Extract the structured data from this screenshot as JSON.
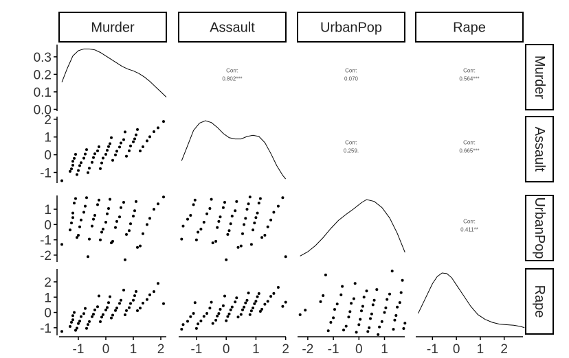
{
  "chart_data": {
    "type": "scatter",
    "title": "",
    "variables": [
      "Murder",
      "Assault",
      "UrbanPop",
      "Rape"
    ],
    "correlation": {
      "label": "Corr:",
      "values": [
        {
          "row": "Murder",
          "col": "Assault",
          "text": "0.802***"
        },
        {
          "row": "Murder",
          "col": "UrbanPop",
          "text": "0.070"
        },
        {
          "row": "Murder",
          "col": "Rape",
          "text": "0.564***"
        },
        {
          "row": "Assault",
          "col": "UrbanPop",
          "text": "0.259."
        },
        {
          "row": "Assault",
          "col": "Rape",
          "text": "0.665***"
        },
        {
          "row": "UrbanPop",
          "col": "Rape",
          "text": "0.411**"
        }
      ]
    },
    "x_ranges": [
      [
        -1.7,
        2.3
      ],
      [
        -1.6,
        2.1
      ],
      [
        -2.4,
        1.9
      ],
      [
        -1.7,
        2.9
      ]
    ],
    "y_ranges": [
      [
        -0.01,
        0.37
      ],
      [
        -1.6,
        2.15
      ],
      [
        -2.45,
        1.9
      ],
      [
        -1.5,
        2.85
      ]
    ],
    "x_ticks": [
      {
        "values": [
          -1,
          0,
          1,
          2
        ],
        "labels": [
          "-1",
          "0",
          "1",
          "2"
        ]
      },
      {
        "values": [
          -1,
          0,
          1,
          2
        ],
        "labels": [
          "-1",
          "0",
          "1",
          "2"
        ]
      },
      {
        "values": [
          -2,
          -1,
          0,
          1
        ],
        "labels": [
          "-2",
          "-1",
          "0",
          "1"
        ]
      },
      {
        "values": [
          -1,
          0,
          1,
          2
        ],
        "labels": [
          "-1",
          "0",
          "1",
          "2"
        ]
      }
    ],
    "y_ticks": [
      {
        "values": [
          0.0,
          0.1,
          0.2,
          0.3
        ],
        "labels": [
          "0.0",
          "0.1",
          "0.2",
          "0.3"
        ]
      },
      {
        "values": [
          -1,
          0,
          1,
          2
        ],
        "labels": [
          "-1",
          "0",
          "1",
          "2"
        ]
      },
      {
        "values": [
          -2,
          -1,
          0,
          1
        ],
        "labels": [
          "-2",
          "-1",
          "0",
          "1"
        ]
      },
      {
        "values": [
          -1,
          0,
          1,
          2
        ],
        "labels": [
          "-1",
          "0",
          "1",
          "2"
        ]
      }
    ],
    "densities": [
      {
        "variable": "Murder",
        "x": [
          -1.6,
          -1.4,
          -1.2,
          -1.0,
          -0.8,
          -0.6,
          -0.4,
          -0.2,
          0.0,
          0.2,
          0.4,
          0.6,
          0.8,
          1.0,
          1.2,
          1.4,
          1.6,
          1.8,
          2.0,
          2.2
        ],
        "y": [
          0.155,
          0.235,
          0.305,
          0.335,
          0.345,
          0.345,
          0.34,
          0.325,
          0.305,
          0.285,
          0.265,
          0.245,
          0.23,
          0.22,
          0.205,
          0.185,
          0.16,
          0.13,
          0.1,
          0.07
        ]
      },
      {
        "variable": "Assault",
        "x": [
          -1.5,
          -1.3,
          -1.1,
          -0.9,
          -0.7,
          -0.5,
          -0.3,
          -0.1,
          0.1,
          0.3,
          0.5,
          0.7,
          0.9,
          1.1,
          1.3,
          1.5,
          1.7,
          1.9,
          2.0
        ],
        "y": [
          0.3,
          0.55,
          0.8,
          0.92,
          0.96,
          0.93,
          0.85,
          0.75,
          0.68,
          0.66,
          0.66,
          0.7,
          0.72,
          0.7,
          0.6,
          0.42,
          0.22,
          0.06,
          0.0
        ]
      },
      {
        "variable": "UrbanPop",
        "x": [
          -2.3,
          -2.0,
          -1.7,
          -1.4,
          -1.1,
          -0.8,
          -0.5,
          -0.2,
          0.1,
          0.3,
          0.6,
          0.9,
          1.2,
          1.5,
          1.8
        ],
        "y": [
          0.03,
          0.1,
          0.2,
          0.33,
          0.48,
          0.61,
          0.71,
          0.8,
          0.9,
          0.95,
          0.92,
          0.82,
          0.65,
          0.4,
          0.09
        ]
      },
      {
        "variable": "Rape",
        "x": [
          -1.6,
          -1.3,
          -1.0,
          -0.8,
          -0.6,
          -0.4,
          -0.2,
          0.0,
          0.3,
          0.6,
          0.9,
          1.2,
          1.5,
          1.8,
          2.1,
          2.4,
          2.7,
          2.85
        ],
        "y": [
          0.3,
          0.55,
          0.8,
          0.92,
          0.98,
          0.97,
          0.9,
          0.78,
          0.6,
          0.42,
          0.28,
          0.2,
          0.15,
          0.12,
          0.11,
          0.1,
          0.08,
          0.06
        ]
      }
    ],
    "points": {
      "Murder": [
        -1.6,
        -1.3,
        -1.25,
        -1.2,
        -1.2,
        -1.15,
        -1.1,
        -1.05,
        -1.0,
        -0.95,
        -0.9,
        -0.8,
        -0.75,
        -0.7,
        -0.65,
        -0.6,
        -0.5,
        -0.45,
        -0.4,
        -0.3,
        -0.25,
        -0.2,
        -0.15,
        -0.1,
        0.0,
        0.05,
        0.1,
        0.15,
        0.2,
        0.25,
        0.35,
        0.4,
        0.5,
        0.55,
        0.65,
        0.7,
        0.75,
        0.85,
        0.9,
        1.0,
        1.05,
        1.1,
        1.15,
        1.25,
        1.35,
        1.5,
        1.6,
        1.75,
        1.9,
        2.1
      ],
      "Assault": [
        -1.5,
        -1.45,
        -1.3,
        -1.2,
        -1.1,
        -1.05,
        -1.0,
        -0.95,
        -0.85,
        -0.75,
        -0.65,
        -0.55,
        -0.5,
        -0.45,
        -0.35,
        -0.3,
        -0.25,
        -0.2,
        -0.1,
        -0.05,
        0.0,
        0.05,
        0.1,
        0.15,
        0.2,
        0.3,
        0.35,
        0.4,
        0.5,
        0.55,
        0.6,
        0.65,
        0.7,
        0.75,
        0.8,
        0.85,
        0.9,
        0.95,
        1.0,
        1.05,
        1.1,
        1.15,
        1.2,
        1.3,
        1.4,
        1.5,
        1.6,
        1.75,
        1.9,
        2.0
      ],
      "UrbanPop": [
        -2.3,
        -2.1,
        -1.5,
        -1.4,
        -1.3,
        -1.2,
        -1.1,
        -1.0,
        -0.95,
        -0.85,
        -0.7,
        -0.65,
        -0.6,
        -0.5,
        -0.4,
        -0.35,
        -0.3,
        -0.2,
        -0.15,
        -0.1,
        0.0,
        0.05,
        0.1,
        0.15,
        0.2,
        0.3,
        0.35,
        0.4,
        0.45,
        0.5,
        0.55,
        0.6,
        0.7,
        0.75,
        0.8,
        0.9,
        1.0,
        1.05,
        1.1,
        1.2,
        1.3,
        1.35,
        1.4,
        1.45,
        1.5,
        1.6,
        1.65,
        1.7,
        1.75,
        1.8
      ],
      "Rape": [
        -1.45,
        -1.3,
        -1.25,
        -1.2,
        -1.15,
        -1.1,
        -1.05,
        -1.0,
        -0.95,
        -0.9,
        -0.8,
        -0.7,
        -0.65,
        -0.6,
        -0.5,
        -0.45,
        -0.4,
        -0.35,
        -0.3,
        -0.2,
        -0.15,
        -0.1,
        0.0,
        0.05,
        0.1,
        0.15,
        0.2,
        0.3,
        0.35,
        0.4,
        0.5,
        0.55,
        0.6,
        0.65,
        0.7,
        0.8,
        0.85,
        0.9,
        1.0,
        1.1,
        1.15,
        1.2,
        1.3,
        1.4,
        1.5,
        1.7,
        1.9,
        2.1,
        2.45,
        2.7
      ]
    },
    "point_order": {
      "Murder": [
        0,
        1,
        2,
        4,
        3,
        5,
        7,
        6,
        9,
        8,
        10,
        13,
        12,
        11,
        14,
        15,
        16,
        17,
        19,
        18,
        20,
        22,
        21,
        23,
        24,
        26,
        25,
        27,
        29,
        28,
        30,
        31,
        33,
        32,
        34,
        36,
        35,
        38,
        37,
        39,
        41,
        40,
        42,
        44,
        43,
        45,
        46,
        47,
        48,
        49
      ],
      "Assault": [
        0,
        1,
        3,
        2,
        5,
        4,
        6,
        8,
        7,
        9,
        12,
        10,
        11,
        13,
        15,
        14,
        17,
        16,
        18,
        20,
        19,
        21,
        24,
        22,
        23,
        25,
        27,
        26,
        28,
        30,
        29,
        31,
        33,
        32,
        34,
        36,
        35,
        38,
        37,
        39,
        41,
        40,
        42,
        43,
        45,
        44,
        46,
        47,
        49,
        48
      ],
      "UrbanPop": [
        2,
        0,
        5,
        7,
        1,
        9,
        4,
        3,
        11,
        6,
        13,
        8,
        10,
        15,
        12,
        14,
        17,
        16,
        19,
        18,
        22,
        20,
        21,
        24,
        23,
        26,
        25,
        28,
        27,
        30,
        29,
        32,
        31,
        34,
        33,
        36,
        35,
        38,
        37,
        40,
        39,
        42,
        41,
        44,
        43,
        46,
        45,
        48,
        47,
        49
      ],
      "Rape": [
        0,
        2,
        1,
        4,
        3,
        6,
        5,
        8,
        7,
        10,
        9,
        12,
        11,
        14,
        13,
        16,
        15,
        18,
        17,
        20,
        19,
        22,
        21,
        24,
        23,
        26,
        25,
        28,
        27,
        30,
        29,
        32,
        31,
        34,
        33,
        36,
        35,
        38,
        37,
        40,
        39,
        42,
        41,
        44,
        43,
        46,
        45,
        48,
        47,
        49
      ]
    },
    "grid": false,
    "legend": "none"
  }
}
